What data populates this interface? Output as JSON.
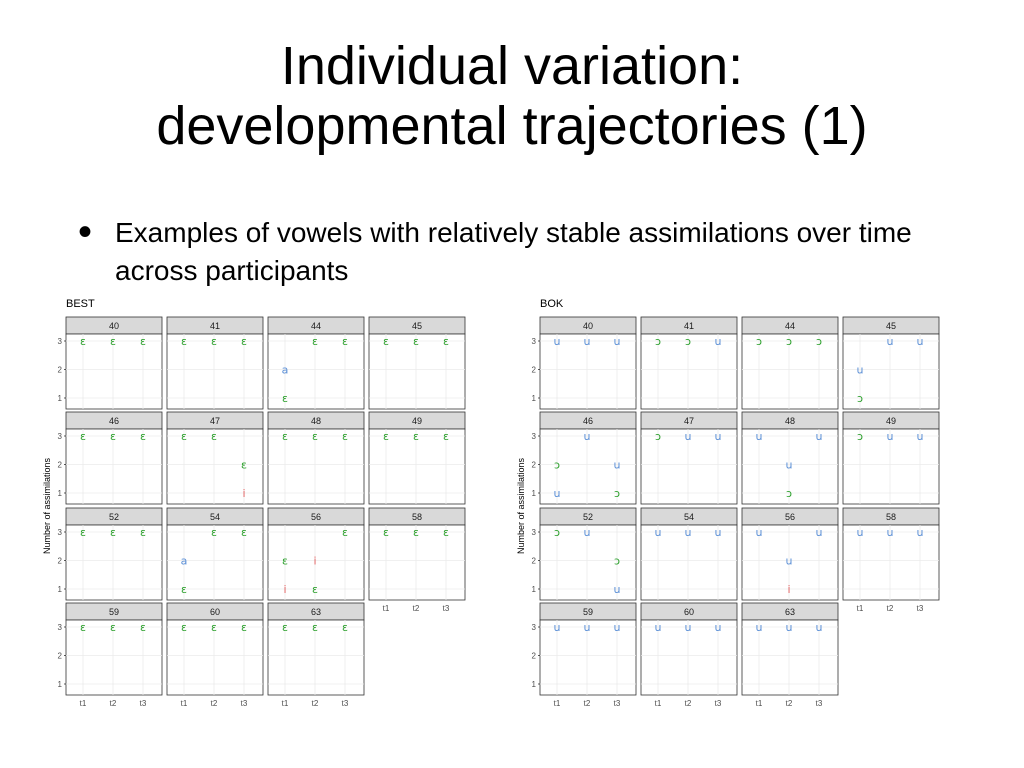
{
  "slide": {
    "title_line1": "Individual variation:",
    "title_line2": "developmental trajectories (1)",
    "bullet": "Examples of vowels with relatively stable assimilations over time across participants"
  },
  "colors": {
    "ɛ": "#2ca02c",
    "a": "#5b8fd6",
    "i": "#e06666",
    "u": "#5b8fd6",
    "ɔ": "#2ca02c",
    "panel_bg": "#ffffff",
    "strip_bg": "#d9d9d9",
    "grid": "#ebebeb"
  },
  "chart_data": [
    {
      "type": "scatter",
      "title": "BEST",
      "ylabel": "Number of assimilations",
      "xlabel": "",
      "x_ticks": [
        "t1",
        "t2",
        "t3"
      ],
      "y_ticks": [
        "1",
        "2",
        "3"
      ],
      "ylim": [
        1,
        3
      ],
      "grid": true,
      "facets": [
        {
          "label": "40",
          "points": [
            {
              "x": "t1",
              "y": 3,
              "v": "ɛ"
            },
            {
              "x": "t2",
              "y": 3,
              "v": "ɛ"
            },
            {
              "x": "t3",
              "y": 3,
              "v": "ɛ"
            }
          ]
        },
        {
          "label": "41",
          "points": [
            {
              "x": "t1",
              "y": 3,
              "v": "ɛ"
            },
            {
              "x": "t2",
              "y": 3,
              "v": "ɛ"
            },
            {
              "x": "t3",
              "y": 3,
              "v": "ɛ"
            }
          ]
        },
        {
          "label": "44",
          "points": [
            {
              "x": "t1",
              "y": 2,
              "v": "a"
            },
            {
              "x": "t1",
              "y": 1,
              "v": "ɛ"
            },
            {
              "x": "t2",
              "y": 3,
              "v": "ɛ"
            },
            {
              "x": "t3",
              "y": 3,
              "v": "ɛ"
            }
          ]
        },
        {
          "label": "45",
          "points": [
            {
              "x": "t1",
              "y": 3,
              "v": "ɛ"
            },
            {
              "x": "t2",
              "y": 3,
              "v": "ɛ"
            },
            {
              "x": "t3",
              "y": 3,
              "v": "ɛ"
            }
          ]
        },
        {
          "label": "46",
          "points": [
            {
              "x": "t1",
              "y": 3,
              "v": "ɛ"
            },
            {
              "x": "t2",
              "y": 3,
              "v": "ɛ"
            },
            {
              "x": "t3",
              "y": 3,
              "v": "ɛ"
            }
          ]
        },
        {
          "label": "47",
          "points": [
            {
              "x": "t1",
              "y": 3,
              "v": "ɛ"
            },
            {
              "x": "t2",
              "y": 3,
              "v": "ɛ"
            },
            {
              "x": "t3",
              "y": 2,
              "v": "ɛ"
            },
            {
              "x": "t3",
              "y": 1,
              "v": "i"
            }
          ]
        },
        {
          "label": "48",
          "points": [
            {
              "x": "t1",
              "y": 3,
              "v": "ɛ"
            },
            {
              "x": "t2",
              "y": 3,
              "v": "ɛ"
            },
            {
              "x": "t3",
              "y": 3,
              "v": "ɛ"
            }
          ]
        },
        {
          "label": "49",
          "points": [
            {
              "x": "t1",
              "y": 3,
              "v": "ɛ"
            },
            {
              "x": "t2",
              "y": 3,
              "v": "ɛ"
            },
            {
              "x": "t3",
              "y": 3,
              "v": "ɛ"
            }
          ]
        },
        {
          "label": "52",
          "points": [
            {
              "x": "t1",
              "y": 3,
              "v": "ɛ"
            },
            {
              "x": "t2",
              "y": 3,
              "v": "ɛ"
            },
            {
              "x": "t3",
              "y": 3,
              "v": "ɛ"
            }
          ]
        },
        {
          "label": "54",
          "points": [
            {
              "x": "t1",
              "y": 2,
              "v": "a"
            },
            {
              "x": "t1",
              "y": 1,
              "v": "ɛ"
            },
            {
              "x": "t2",
              "y": 3,
              "v": "ɛ"
            },
            {
              "x": "t3",
              "y": 3,
              "v": "ɛ"
            }
          ]
        },
        {
          "label": "56",
          "points": [
            {
              "x": "t1",
              "y": 2,
              "v": "ɛ"
            },
            {
              "x": "t1",
              "y": 1,
              "v": "i"
            },
            {
              "x": "t2",
              "y": 2,
              "v": "i"
            },
            {
              "x": "t2",
              "y": 1,
              "v": "ɛ"
            },
            {
              "x": "t3",
              "y": 3,
              "v": "ɛ"
            }
          ]
        },
        {
          "label": "58",
          "points": [
            {
              "x": "t1",
              "y": 3,
              "v": "ɛ"
            },
            {
              "x": "t2",
              "y": 3,
              "v": "ɛ"
            },
            {
              "x": "t3",
              "y": 3,
              "v": "ɛ"
            }
          ]
        },
        {
          "label": "59",
          "points": [
            {
              "x": "t1",
              "y": 3,
              "v": "ɛ"
            },
            {
              "x": "t2",
              "y": 3,
              "v": "ɛ"
            },
            {
              "x": "t3",
              "y": 3,
              "v": "ɛ"
            }
          ]
        },
        {
          "label": "60",
          "points": [
            {
              "x": "t1",
              "y": 3,
              "v": "ɛ"
            },
            {
              "x": "t2",
              "y": 3,
              "v": "ɛ"
            },
            {
              "x": "t3",
              "y": 3,
              "v": "ɛ"
            }
          ]
        },
        {
          "label": "63",
          "points": [
            {
              "x": "t1",
              "y": 3,
              "v": "ɛ"
            },
            {
              "x": "t2",
              "y": 3,
              "v": "ɛ"
            },
            {
              "x": "t3",
              "y": 3,
              "v": "ɛ"
            }
          ]
        }
      ]
    },
    {
      "type": "scatter",
      "title": "BOK",
      "ylabel": "Number of assimilations",
      "xlabel": "",
      "x_ticks": [
        "t1",
        "t2",
        "t3"
      ],
      "y_ticks": [
        "1",
        "2",
        "3"
      ],
      "ylim": [
        1,
        3
      ],
      "grid": true,
      "facets": [
        {
          "label": "40",
          "points": [
            {
              "x": "t1",
              "y": 3,
              "v": "u"
            },
            {
              "x": "t2",
              "y": 3,
              "v": "u"
            },
            {
              "x": "t3",
              "y": 3,
              "v": "u"
            }
          ]
        },
        {
          "label": "41",
          "points": [
            {
              "x": "t1",
              "y": 3,
              "v": "ɔ"
            },
            {
              "x": "t2",
              "y": 3,
              "v": "ɔ"
            },
            {
              "x": "t3",
              "y": 3,
              "v": "u"
            }
          ]
        },
        {
          "label": "44",
          "points": [
            {
              "x": "t1",
              "y": 3,
              "v": "ɔ"
            },
            {
              "x": "t2",
              "y": 3,
              "v": "ɔ"
            },
            {
              "x": "t3",
              "y": 3,
              "v": "ɔ"
            }
          ]
        },
        {
          "label": "45",
          "points": [
            {
              "x": "t1",
              "y": 2,
              "v": "u"
            },
            {
              "x": "t1",
              "y": 1,
              "v": "ɔ"
            },
            {
              "x": "t2",
              "y": 3,
              "v": "u"
            },
            {
              "x": "t3",
              "y": 3,
              "v": "u"
            }
          ]
        },
        {
          "label": "46",
          "points": [
            {
              "x": "t1",
              "y": 2,
              "v": "ɔ"
            },
            {
              "x": "t1",
              "y": 1,
              "v": "u"
            },
            {
              "x": "t2",
              "y": 3,
              "v": "u"
            },
            {
              "x": "t3",
              "y": 2,
              "v": "u"
            },
            {
              "x": "t3",
              "y": 1,
              "v": "ɔ"
            }
          ]
        },
        {
          "label": "47",
          "points": [
            {
              "x": "t1",
              "y": 3,
              "v": "ɔ"
            },
            {
              "x": "t2",
              "y": 3,
              "v": "u"
            },
            {
              "x": "t3",
              "y": 3,
              "v": "u"
            }
          ]
        },
        {
          "label": "48",
          "points": [
            {
              "x": "t1",
              "y": 3,
              "v": "u"
            },
            {
              "x": "t2",
              "y": 2,
              "v": "u"
            },
            {
              "x": "t2",
              "y": 1,
              "v": "ɔ"
            },
            {
              "x": "t3",
              "y": 3,
              "v": "u"
            }
          ]
        },
        {
          "label": "49",
          "points": [
            {
              "x": "t1",
              "y": 3,
              "v": "ɔ"
            },
            {
              "x": "t2",
              "y": 3,
              "v": "u"
            },
            {
              "x": "t3",
              "y": 3,
              "v": "u"
            }
          ]
        },
        {
          "label": "52",
          "points": [
            {
              "x": "t1",
              "y": 3,
              "v": "ɔ"
            },
            {
              "x": "t2",
              "y": 3,
              "v": "u"
            },
            {
              "x": "t3",
              "y": 2,
              "v": "ɔ"
            },
            {
              "x": "t3",
              "y": 1,
              "v": "u"
            }
          ]
        },
        {
          "label": "54",
          "points": [
            {
              "x": "t1",
              "y": 3,
              "v": "u"
            },
            {
              "x": "t2",
              "y": 3,
              "v": "u"
            },
            {
              "x": "t3",
              "y": 3,
              "v": "u"
            }
          ]
        },
        {
          "label": "56",
          "points": [
            {
              "x": "t1",
              "y": 3,
              "v": "u"
            },
            {
              "x": "t2",
              "y": 2,
              "v": "u"
            },
            {
              "x": "t2",
              "y": 1,
              "v": "i"
            },
            {
              "x": "t3",
              "y": 3,
              "v": "u"
            }
          ]
        },
        {
          "label": "58",
          "points": [
            {
              "x": "t1",
              "y": 3,
              "v": "u"
            },
            {
              "x": "t2",
              "y": 3,
              "v": "u"
            },
            {
              "x": "t3",
              "y": 3,
              "v": "u"
            }
          ]
        },
        {
          "label": "59",
          "points": [
            {
              "x": "t1",
              "y": 3,
              "v": "u"
            },
            {
              "x": "t2",
              "y": 3,
              "v": "u"
            },
            {
              "x": "t3",
              "y": 3,
              "v": "u"
            }
          ]
        },
        {
          "label": "60",
          "points": [
            {
              "x": "t1",
              "y": 3,
              "v": "u"
            },
            {
              "x": "t2",
              "y": 3,
              "v": "u"
            },
            {
              "x": "t3",
              "y": 3,
              "v": "u"
            }
          ]
        },
        {
          "label": "63",
          "points": [
            {
              "x": "t1",
              "y": 3,
              "v": "u"
            },
            {
              "x": "t2",
              "y": 3,
              "v": "u"
            },
            {
              "x": "t3",
              "y": 3,
              "v": "u"
            }
          ]
        }
      ]
    }
  ]
}
